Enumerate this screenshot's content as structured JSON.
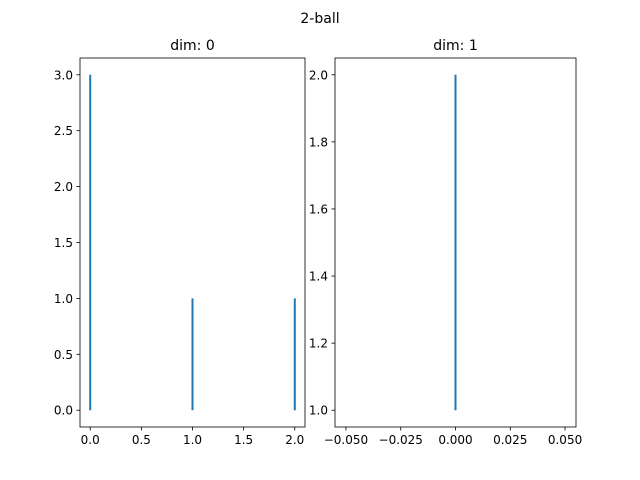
{
  "figure_title": "2-ball",
  "chart_data": [
    {
      "type": "bar",
      "style": "vertical-lines",
      "title": "dim: 0",
      "xlabel": "",
      "ylabel": "",
      "xlim": [
        -0.1,
        2.1
      ],
      "ylim": [
        -0.15,
        3.15
      ],
      "x": [
        0,
        1,
        2
      ],
      "ymin": [
        0,
        0,
        0
      ],
      "ymax": [
        3,
        1,
        1
      ],
      "xticks": [
        0.0,
        0.5,
        1.0,
        1.5,
        2.0
      ],
      "xtick_labels": [
        "0.0",
        "0.5",
        "1.0",
        "1.5",
        "2.0"
      ],
      "yticks": [
        0.0,
        0.5,
        1.0,
        1.5,
        2.0,
        2.5,
        3.0
      ],
      "ytick_labels": [
        "0.0",
        "0.5",
        "1.0",
        "1.5",
        "2.0",
        "2.5",
        "3.0"
      ],
      "color": "#1f77b4",
      "grid": false
    },
    {
      "type": "bar",
      "style": "vertical-lines",
      "title": "dim: 1",
      "xlabel": "",
      "ylabel": "",
      "xlim": [
        -0.055,
        0.055
      ],
      "ylim": [
        0.95,
        2.05
      ],
      "x": [
        0
      ],
      "ymin": [
        1
      ],
      "ymax": [
        2
      ],
      "xticks": [
        -0.05,
        -0.025,
        0.0,
        0.025,
        0.05
      ],
      "xtick_labels": [
        "−0.050",
        "−0.025",
        "0.000",
        "0.025",
        "0.050"
      ],
      "yticks": [
        1.0,
        1.2,
        1.4,
        1.6,
        1.8,
        2.0
      ],
      "ytick_labels": [
        "1.0",
        "1.2",
        "1.4",
        "1.6",
        "1.8",
        "2.0"
      ],
      "color": "#1f77b4",
      "grid": false
    }
  ]
}
